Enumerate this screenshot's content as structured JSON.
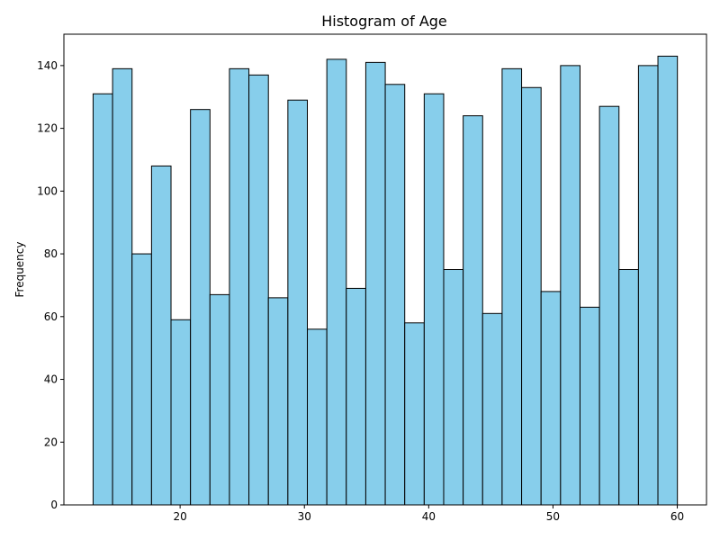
{
  "chart_data": {
    "type": "bar",
    "title": "Histogram of Age",
    "xlabel": "",
    "ylabel": "Frequency",
    "bin_start": 13,
    "bin_width": 1.567,
    "values": [
      131,
      139,
      80,
      108,
      59,
      126,
      67,
      139,
      137,
      66,
      129,
      56,
      142,
      69,
      141,
      134,
      58,
      131,
      75,
      124,
      61,
      139,
      133,
      68,
      140,
      63,
      127,
      75,
      140,
      143
    ],
    "xlim": [
      10.65,
      62.35
    ],
    "ylim": [
      0,
      150
    ],
    "xticks": [
      20,
      30,
      40,
      50,
      60
    ],
    "yticks": [
      0,
      20,
      40,
      60,
      80,
      100,
      120,
      140
    ],
    "bar_color": "#87ceeb",
    "edge_color": "#000000",
    "grid": false
  }
}
